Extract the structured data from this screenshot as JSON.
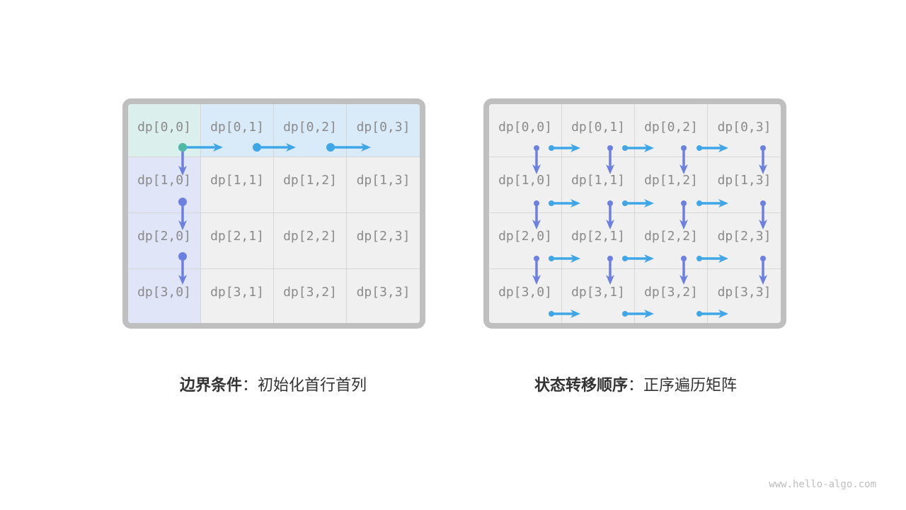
{
  "left_panel": {
    "cells": [
      [
        "dp[0,0]",
        "dp[0,1]",
        "dp[0,2]",
        "dp[0,3]"
      ],
      [
        "dp[1,0]",
        "dp[1,1]",
        "dp[1,2]",
        "dp[1,3]"
      ],
      [
        "dp[2,0]",
        "dp[2,1]",
        "dp[2,2]",
        "dp[2,3]"
      ],
      [
        "dp[3,0]",
        "dp[3,1]",
        "dp[3,2]",
        "dp[3,3]"
      ]
    ],
    "caption_bold": "边界条件",
    "caption_rest": "：初始化首行首列"
  },
  "right_panel": {
    "cells": [
      [
        "dp[0,0]",
        "dp[0,1]",
        "dp[0,2]",
        "dp[0,3]"
      ],
      [
        "dp[1,0]",
        "dp[1,1]",
        "dp[1,2]",
        "dp[1,3]"
      ],
      [
        "dp[2,0]",
        "dp[2,1]",
        "dp[2,2]",
        "dp[2,3]"
      ],
      [
        "dp[3,0]",
        "dp[3,1]",
        "dp[3,2]",
        "dp[3,3]"
      ]
    ],
    "caption_bold": "状态转移顺序",
    "caption_rest": "：正序遍历矩阵"
  },
  "colors": {
    "horizontal_arrow": "#3fa6e8",
    "vertical_arrow": "#6b80e0",
    "origin_dot": "#4fb9a8",
    "origin_cell": "#dbefec",
    "first_row": "#d9ebf9",
    "first_col": "#e0e5f8",
    "cell": "#f0f0f0",
    "border": "#bfbfbf"
  },
  "watermark": "www.hello-algo.com"
}
